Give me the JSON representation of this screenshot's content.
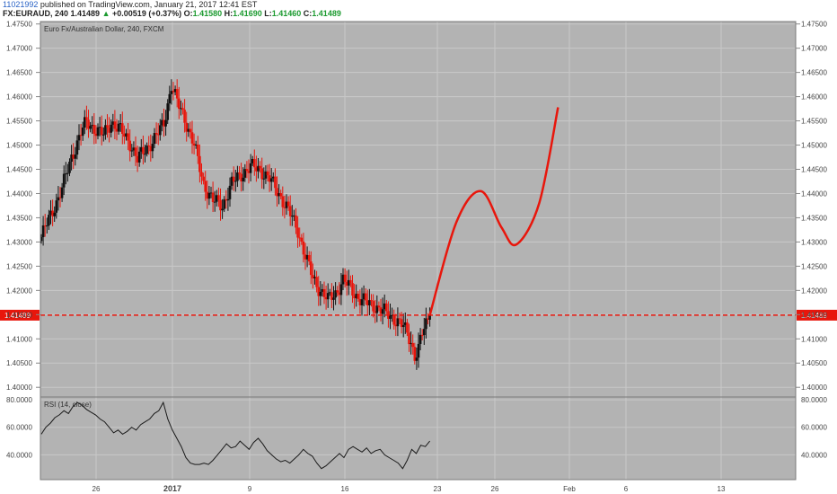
{
  "header": {
    "publisher": "11021992",
    "published_text": "published on TradingView.com, January 21, 2017 12:41 EST",
    "symbol": "FX:EURAUD, 240",
    "last": "1.41489",
    "change_arrow": "▲",
    "change": "+0.00519 (+0.37%)",
    "o_label": "O:",
    "o_value": "1.41580",
    "h_label": "H:",
    "h_value": "1.41690",
    "l_label": "L:",
    "l_value": "1.41460",
    "c_label": "C:",
    "c_value": "1.41489"
  },
  "colors": {
    "panel_bg": "#b3b3b3",
    "grid": "#c8c8c8",
    "up_candle": "#111111",
    "down_candle": "#e8160c",
    "price_line": "#e8160c",
    "projection": "#e8160c",
    "rsi_line": "#1a1a1a"
  },
  "chart_data": [
    {
      "type": "candlestick",
      "title": "Euro Fx/Australian Dollar, 240, FXCM",
      "ylim": [
        1.398,
        1.4755
      ],
      "y_ticks": [
        "1.47500",
        "1.47000",
        "1.46500",
        "1.46000",
        "1.45500",
        "1.45000",
        "1.44500",
        "1.44000",
        "1.43500",
        "1.43000",
        "1.42500",
        "1.42000",
        "1.41500",
        "1.41000",
        "1.40500",
        "1.40000"
      ],
      "x_ticks": [
        "26",
        "2017",
        "9",
        "16",
        "23",
        "26",
        "Feb",
        "6",
        "13"
      ],
      "current_price": "1.41489",
      "price_path": [
        [
          0,
          1.431
        ],
        [
          6,
          1.4365
        ],
        [
          11,
          1.441
        ],
        [
          16,
          1.4475
        ],
        [
          21,
          1.4525
        ],
        [
          24,
          1.4548
        ],
        [
          28,
          1.4535
        ],
        [
          33,
          1.452
        ],
        [
          37,
          1.4548
        ],
        [
          42,
          1.453
        ],
        [
          47,
          1.4505
        ],
        [
          51,
          1.447
        ],
        [
          56,
          1.4495
        ],
        [
          61,
          1.4518
        ],
        [
          65,
          1.4545
        ],
        [
          69,
          1.4625
        ],
        [
          72,
          1.4588
        ],
        [
          76,
          1.4555
        ],
        [
          81,
          1.45
        ],
        [
          86,
          1.442
        ],
        [
          91,
          1.4385
        ],
        [
          96,
          1.4375
        ],
        [
          101,
          1.442
        ],
        [
          106,
          1.444
        ],
        [
          111,
          1.4455
        ],
        [
          116,
          1.445
        ],
        [
          121,
          1.443
        ],
        [
          126,
          1.44
        ],
        [
          131,
          1.4365
        ],
        [
          136,
          1.4325
        ],
        [
          140,
          1.427
        ],
        [
          144,
          1.4225
        ],
        [
          148,
          1.42
        ],
        [
          152,
          1.418
        ],
        [
          156,
          1.4195
        ],
        [
          160,
          1.422
        ],
        [
          164,
          1.4205
        ],
        [
          168,
          1.4185
        ],
        [
          172,
          1.4175
        ],
        [
          176,
          1.417
        ],
        [
          180,
          1.416
        ],
        [
          184,
          1.415
        ],
        [
          188,
          1.414
        ],
        [
          192,
          1.4125
        ],
        [
          196,
          1.4095
        ],
        [
          198,
          1.4065
        ],
        [
          200,
          1.408
        ],
        [
          202,
          1.411
        ],
        [
          204,
          1.413
        ],
        [
          206,
          1.4149
        ]
      ],
      "projection": [
        [
          206,
          1.4149
        ],
        [
          220,
          1.434
        ],
        [
          233,
          1.4405
        ],
        [
          244,
          1.433
        ],
        [
          252,
          1.4295
        ],
        [
          264,
          1.438
        ],
        [
          274,
          1.4578
        ]
      ]
    },
    {
      "type": "line",
      "title": "RSI (14, close)",
      "ylim": [
        22,
        82
      ],
      "y_ticks": [
        "80.0000",
        "60.0000",
        "40.0000"
      ],
      "values": [
        55,
        60,
        63,
        67,
        69,
        72,
        70,
        75,
        78,
        76,
        73,
        71,
        69,
        66,
        64,
        60,
        56,
        58,
        55,
        57,
        60,
        58,
        62,
        64,
        66,
        70,
        72,
        78,
        66,
        58,
        52,
        46,
        38,
        34,
        33,
        33,
        34,
        33,
        36,
        40,
        44,
        48,
        45,
        46,
        50,
        47,
        44,
        49,
        52,
        48,
        43,
        40,
        37,
        35,
        36,
        34,
        37,
        40,
        44,
        41,
        39,
        34,
        30,
        32,
        35,
        38,
        41,
        38,
        44,
        46,
        44,
        42,
        45,
        41,
        43,
        44,
        40,
        38,
        36,
        34,
        30,
        36,
        44,
        41,
        47,
        46,
        50
      ]
    }
  ]
}
